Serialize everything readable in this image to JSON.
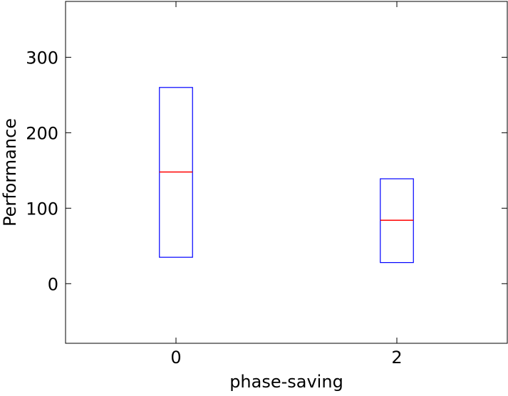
{
  "chart_data": {
    "type": "box",
    "x_label": "phase-saving",
    "y_label": "Performance",
    "boxes": [
      {
        "x": 0,
        "q1": 35,
        "median": 148,
        "q3": 260
      },
      {
        "x": 2,
        "q1": 28,
        "median": 84,
        "q3": 139
      }
    ],
    "box_color": "#0000ff",
    "median_color": "#ff0000",
    "xlim": [
      -1,
      3
    ],
    "xticks": [
      0,
      2
    ],
    "ylim": [
      -79,
      374
    ],
    "yticks": [
      0,
      100,
      200,
      300
    ],
    "grid": false
  }
}
